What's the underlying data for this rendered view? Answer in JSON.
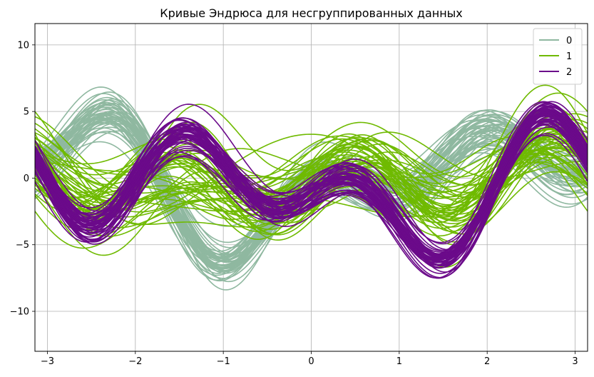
{
  "chart_data": {
    "type": "line",
    "title": "Кривые Эндрюса для несгруппированных данных",
    "xlabel": "",
    "ylabel": "",
    "xlim": [
      -3.14159,
      3.14159
    ],
    "ylim": [
      -13.0,
      11.6
    ],
    "x_ticks": [
      -3,
      -2,
      -1,
      0,
      1,
      2,
      3
    ],
    "x_tick_labels": [
      "−3",
      "−2",
      "−1",
      "0",
      "1",
      "2",
      "3"
    ],
    "y_ticks": [
      10,
      5,
      0,
      -5,
      -10
    ],
    "y_tick_labels": [
      "10",
      "5",
      "0",
      "−5",
      "−10"
    ],
    "grid": true,
    "legend_position": "top-right",
    "series": [
      {
        "name": "0",
        "color": "#8fb8a0",
        "count": 50,
        "base_coefficients": [
          0.2,
          1.2,
          -2.6,
          1.6,
          0.3,
          -0.5,
          2.5
        ],
        "spread": [
          1.0,
          0.9,
          0.9,
          0.7,
          0.8,
          0.6,
          0.6
        ]
      },
      {
        "name": "1",
        "color": "#6fba00",
        "count": 50,
        "base_coefficients": [
          -0.4,
          0.1,
          -0.5,
          -0.3,
          0.6,
          1.6,
          -0.2
        ],
        "spread": [
          1.4,
          1.6,
          1.5,
          1.3,
          1.4,
          1.2,
          1.0
        ]
      },
      {
        "name": "2",
        "color": "#6b0a8a",
        "count": 50,
        "base_coefficients": [
          -0.8,
          -1.3,
          -1.0,
          -1.7,
          0.7,
          3.2,
          -0.4
        ],
        "spread": [
          0.8,
          0.6,
          0.6,
          0.6,
          0.5,
          0.5,
          0.5
        ]
      }
    ]
  }
}
